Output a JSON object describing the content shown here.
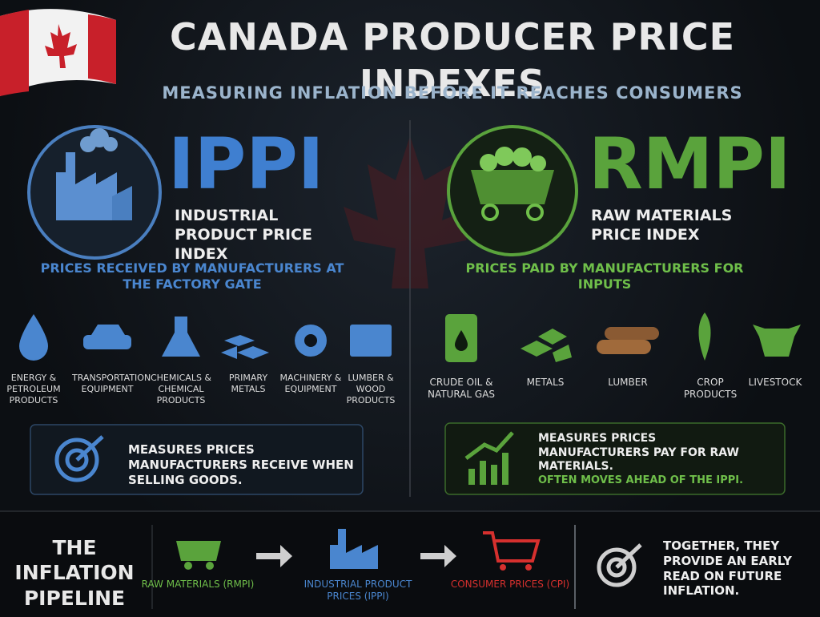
{
  "header": {
    "title": "CANADA PRODUCER PRICE INDEXES",
    "subtitle": "MEASURING INFLATION BEFORE IT REACHES CONSUMERS"
  },
  "ippi": {
    "acronym": "IPPI",
    "name": "INDUSTRIAL PRODUCT PRICE INDEX",
    "description": "PRICES RECEIVED BY MANUFACTURERS AT THE FACTORY GATE",
    "categories": [
      "ENERGY & PETROLEUM PRODUCTS",
      "TRANSPORTATION EQUIPMENT",
      "CHEMICALS & CHEMICAL PRODUCTS",
      "PRIMARY METALS",
      "MACHINERY & EQUIPMENT",
      "LUMBER & WOOD PRODUCTS"
    ],
    "note": "MEASURES PRICES MANUFACTURERS RECEIVE WHEN SELLING GOODS."
  },
  "rmpi": {
    "acronym": "RMPI",
    "name": "RAW MATERIALS PRICE INDEX",
    "description": "PRICES PAID BY MANUFACTURERS FOR INPUTS",
    "categories": [
      "CRUDE OIL & NATURAL GAS",
      "METALS",
      "LUMBER",
      "CROP PRODUCTS",
      "LIVESTOCK"
    ],
    "note": "MEASURES PRICES MANUFACTURERS PAY FOR RAW MATERIALS.",
    "note_highlight": "OFTEN MOVES AHEAD OF THE IPPI."
  },
  "pipeline": {
    "title": "THE INFLATION PIPELINE",
    "steps": [
      "RAW MATERIALS (RMPI)",
      "INDUSTRIAL PRODUCT PRICES (IPPI)",
      "CONSUMER PRICES (CPI)"
    ],
    "conclusion": "TOGETHER, THEY PROVIDE AN EARLY READ ON FUTURE INFLATION."
  }
}
